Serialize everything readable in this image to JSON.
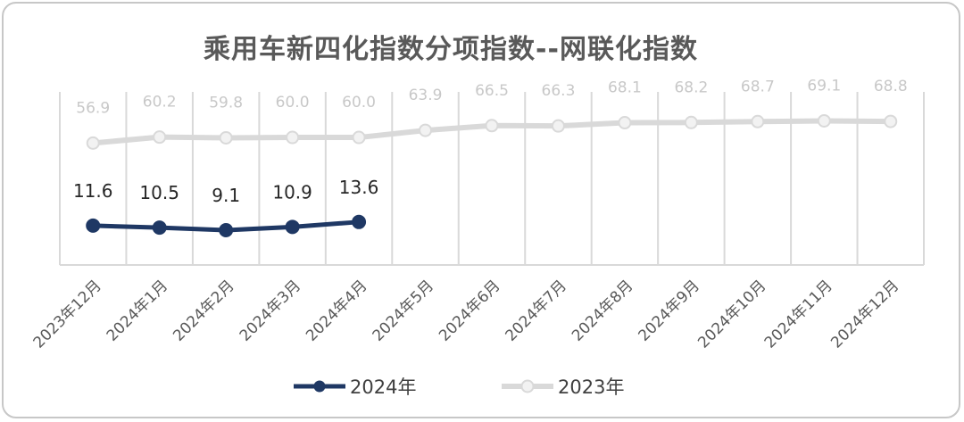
{
  "chart_data": {
    "type": "line",
    "title": "乘用车新四化指数分项指数--网联化指数",
    "categories": [
      "2023年12月",
      "2024年1月",
      "2024年2月",
      "2024年3月",
      "2024年4月",
      "2024年5月",
      "2024年6月",
      "2024年7月",
      "2024年8月",
      "2024年9月",
      "2024年10月",
      "2024年11月",
      "2024年12月"
    ],
    "series": [
      {
        "name": "2024年",
        "color": "#1f3864",
        "values": [
          11.6,
          10.5,
          9.1,
          10.9,
          13.6,
          null,
          null,
          null,
          null,
          null,
          null,
          null,
          null
        ]
      },
      {
        "name": "2023年",
        "color": "#d9d9d9",
        "values": [
          56.9,
          60.2,
          59.8,
          60.0,
          60.0,
          63.9,
          66.5,
          66.3,
          68.1,
          68.2,
          68.7,
          69.1,
          68.8
        ]
      }
    ],
    "labels": [
      [
        "11.6",
        "10.5",
        "9.1",
        "10.9",
        "13.6",
        "",
        "",
        "",
        "",
        "",
        "",
        "",
        ""
      ],
      [
        "56.9",
        "60.2",
        "59.8",
        "60.0",
        "60.0",
        "63.9",
        "66.5",
        "66.3",
        "68.1",
        "68.2",
        "68.7",
        "69.1",
        "68.8"
      ]
    ],
    "ylim": [
      -10,
      85
    ],
    "grid": "vertical",
    "legend_position": "bottom"
  }
}
